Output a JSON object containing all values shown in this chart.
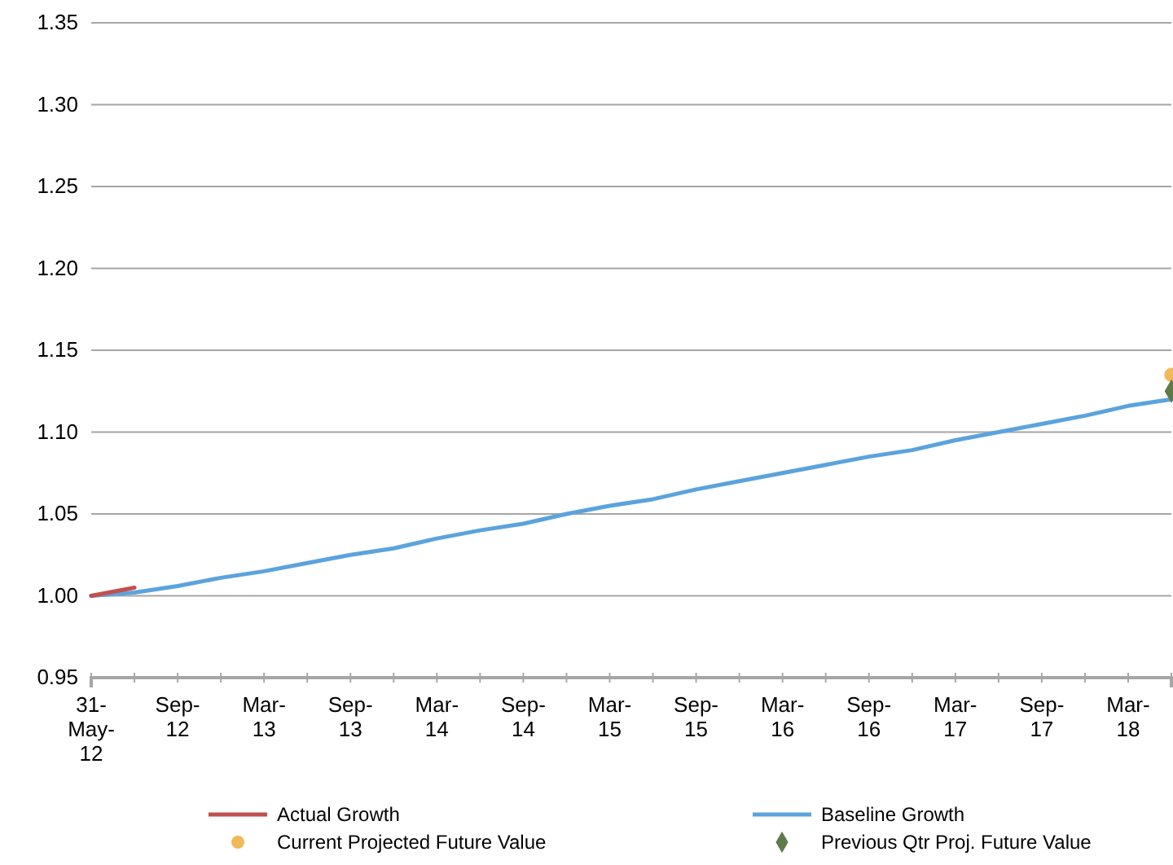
{
  "chart_data": {
    "type": "line",
    "categories": [
      "31-May-12",
      null,
      "Sep-12",
      null,
      "Mar-13",
      null,
      "Sep-13",
      null,
      "Mar-14",
      null,
      "Sep-14",
      null,
      "Mar-15",
      null,
      "Sep-15",
      null,
      "Mar-16",
      null,
      "Sep-16",
      null,
      "Mar-17",
      null,
      "Sep-17",
      null,
      "Mar-18",
      null
    ],
    "ylim": [
      0.95,
      1.35
    ],
    "yticks": [
      {
        "value": 0.95,
        "label": "0.95"
      },
      {
        "value": 1,
        "label": "1.00"
      },
      {
        "value": 1.05,
        "label": "1.05"
      },
      {
        "value": 1.1,
        "label": "1.10"
      },
      {
        "value": 1.15,
        "label": "1.15"
      },
      {
        "value": 1.2,
        "label": "1.20"
      },
      {
        "value": 1.25,
        "label": "1.25"
      },
      {
        "value": 1.3,
        "label": "1.30"
      },
      {
        "value": 1.35,
        "label": "1.35"
      }
    ],
    "grid": "y",
    "legend": "bottom",
    "series": [
      {
        "name": "Actual Growth",
        "color": "#c0504d",
        "values": [
          1.0,
          1.005,
          null,
          null,
          null,
          null,
          null,
          null,
          null,
          null,
          null,
          null,
          null,
          null,
          null,
          null,
          null,
          null,
          null,
          null,
          null,
          null,
          null,
          null,
          null,
          null
        ]
      },
      {
        "name": "Baseline Growth",
        "color": "#5ba3dc",
        "values": [
          1.0,
          1.002,
          1.006,
          1.011,
          1.015,
          1.02,
          1.025,
          1.029,
          1.035,
          1.04,
          1.044,
          1.05,
          1.055,
          1.059,
          1.065,
          1.07,
          1.075,
          1.08,
          1.085,
          1.089,
          1.095,
          1.1,
          1.105,
          1.11,
          1.116,
          1.12
        ]
      },
      {
        "name": "Current Projected Future Value",
        "type": "scatter",
        "marker": "circle",
        "color": "#f0b95a",
        "values": [
          null,
          null,
          null,
          null,
          null,
          null,
          null,
          null,
          null,
          null,
          null,
          null,
          null,
          null,
          null,
          null,
          null,
          null,
          null,
          null,
          null,
          null,
          null,
          null,
          null,
          1.135
        ]
      },
      {
        "name": "Previous Qtr Proj. Future Value",
        "type": "scatter",
        "marker": "diamond",
        "color": "#5f7a4a",
        "values": [
          null,
          null,
          null,
          null,
          null,
          null,
          null,
          null,
          null,
          null,
          null,
          null,
          null,
          null,
          null,
          null,
          null,
          null,
          null,
          null,
          null,
          null,
          null,
          null,
          null,
          1.125
        ]
      }
    ]
  }
}
